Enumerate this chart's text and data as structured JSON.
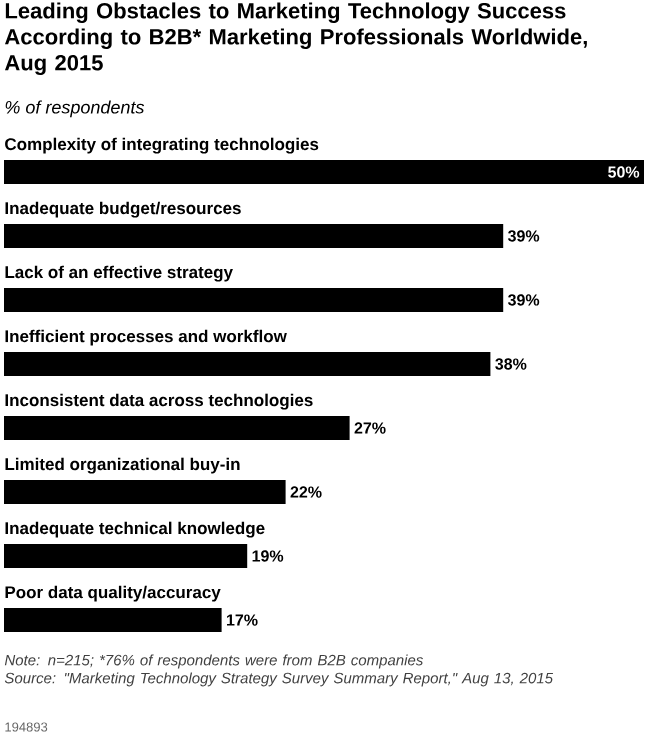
{
  "chart_data": {
    "type": "bar",
    "orientation": "horizontal",
    "title": "Leading Obstacles to Marketing Technology Success According to B2B* Marketing Professionals Worldwide, Aug 2015",
    "subtitle": "% of respondents",
    "categories": [
      "Complexity of integrating technologies",
      "Inadequate budget/resources",
      "Lack of an effective strategy",
      "Inefficient processes and workflow",
      "Inconsistent data across technologies",
      "Limited organizational buy-in",
      "Inadequate technical knowledge",
      "Poor data quality/accuracy"
    ],
    "values": [
      50,
      39,
      39,
      38,
      27,
      22,
      19,
      17
    ],
    "value_labels": [
      "50%",
      "39%",
      "39%",
      "38%",
      "27%",
      "22%",
      "19%",
      "17%"
    ],
    "color": "#000000",
    "annotations": [
      "Note: n=215; *76% of respondents were from B2B companies",
      "Source: \"Marketing Technology Strategy Survey Summary Report,\" Aug 13, 2015",
      "194893"
    ]
  }
}
